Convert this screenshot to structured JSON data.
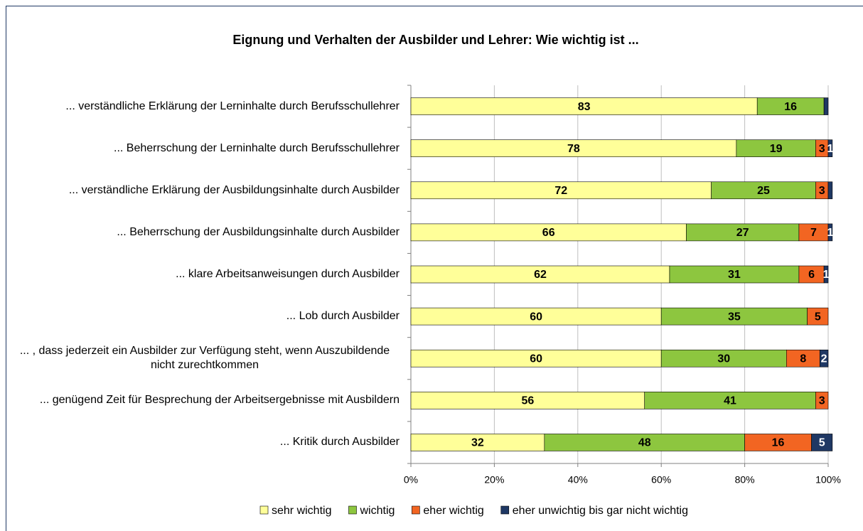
{
  "chart_data": {
    "type": "bar",
    "orientation": "horizontal",
    "stacked": true,
    "title": "Eignung und Verhalten der Ausbilder und Lehrer: Wie wichtig ist ...",
    "categories": [
      "... verständliche Erklärung der Lerninhalte durch Berufsschullehrer",
      "... Beherrschung der Lerninhalte durch Berufsschullehrer",
      "... verständliche Erklärung der Ausbildungsinhalte durch Ausbilder",
      "... Beherrschung der Ausbildungsinhalte durch Ausbilder",
      "... klare Arbeitsanweisungen durch Ausbilder",
      "... Lob durch Ausbilder",
      "... , dass jederzeit ein Ausbilder zur Verfügung steht, wenn Auszubildende nicht zurechtkommen",
      "... genügend Zeit für Besprechung der Arbeitsergebnisse mit Ausbildern",
      "... Kritik durch Ausbilder"
    ],
    "series": [
      {
        "name": "sehr wichtig",
        "color": "#ffff99",
        "label_color": "#000000",
        "values": [
          83,
          78,
          72,
          66,
          62,
          60,
          60,
          56,
          32
        ],
        "value_labels": [
          "83",
          "78",
          "72",
          "66",
          "62",
          "60",
          "60",
          "56",
          "32"
        ]
      },
      {
        "name": "wichtig",
        "color": "#8dc63f",
        "label_color": "#000000",
        "values": [
          16,
          19,
          25,
          27,
          31,
          35,
          30,
          41,
          48
        ],
        "value_labels": [
          "16",
          "19",
          "25",
          "27",
          "31",
          "35",
          "30",
          "41",
          "48"
        ]
      },
      {
        "name": "eher wichtig",
        "color": "#f26522",
        "label_color": "#000000",
        "values": [
          null,
          3,
          3,
          7,
          6,
          5,
          8,
          3,
          16
        ],
        "value_labels": [
          null,
          "3",
          "3",
          "7",
          "6",
          "5",
          "8",
          "3",
          "16"
        ]
      },
      {
        "name": "eher unwichtig bis gar nicht wichtig",
        "color": "#1f3864",
        "label_color": "#ffffff",
        "values": [
          1,
          1,
          1,
          1,
          1,
          null,
          2,
          null,
          5
        ],
        "value_labels": [
          null,
          "1",
          null,
          "1",
          "1",
          null,
          "2",
          null,
          "5"
        ]
      }
    ],
    "xlim": [
      0,
      100
    ],
    "xticks": [
      {
        "value": 0,
        "label": "0%"
      },
      {
        "value": 20,
        "label": "20%"
      },
      {
        "value": 40,
        "label": "40%"
      },
      {
        "value": 60,
        "label": "60%"
      },
      {
        "value": 80,
        "label": "80%"
      },
      {
        "value": 100,
        "label": "100%"
      }
    ],
    "grid": true,
    "legend": "bottom"
  }
}
